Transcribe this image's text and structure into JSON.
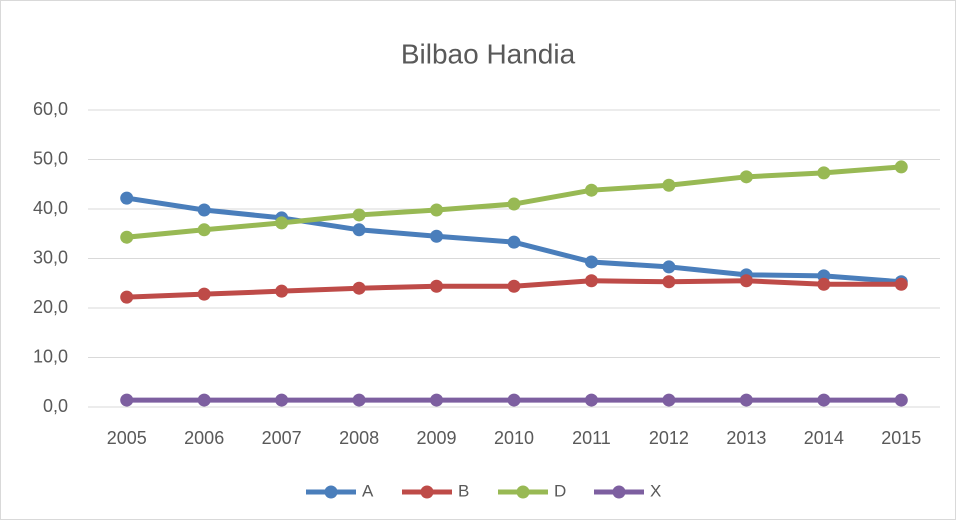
{
  "chart_data": {
    "type": "line",
    "title": "Bilbao Handia",
    "categories": [
      "2005",
      "2006",
      "2007",
      "2008",
      "2009",
      "2010",
      "2011",
      "2012",
      "2013",
      "2014",
      "2015"
    ],
    "series": [
      {
        "name": "A",
        "color": "#4a7ebb",
        "values": [
          42.2,
          39.8,
          38.2,
          35.8,
          34.5,
          33.3,
          29.3,
          28.3,
          26.7,
          26.5,
          25.3
        ]
      },
      {
        "name": "B",
        "color": "#be4b48",
        "values": [
          22.2,
          22.8,
          23.4,
          24.0,
          24.4,
          24.4,
          25.5,
          25.3,
          25.5,
          24.8,
          24.8
        ]
      },
      {
        "name": "D",
        "color": "#98b954",
        "values": [
          34.3,
          35.8,
          37.2,
          38.8,
          39.8,
          41.0,
          43.8,
          44.8,
          46.5,
          47.3,
          48.5
        ]
      },
      {
        "name": "X",
        "color": "#7d5fa0",
        "values": [
          1.4,
          1.4,
          1.4,
          1.4,
          1.4,
          1.4,
          1.4,
          1.4,
          1.4,
          1.4,
          1.4
        ]
      }
    ],
    "ylim": [
      0,
      60
    ],
    "yticks": [
      {
        "value": 0,
        "label": "0,0"
      },
      {
        "value": 10,
        "label": "10,0"
      },
      {
        "value": 20,
        "label": "20,0"
      },
      {
        "value": 30,
        "label": "30,0"
      },
      {
        "value": 40,
        "label": "40,0"
      },
      {
        "value": 50,
        "label": "50,0"
      },
      {
        "value": 60,
        "label": "60,0"
      }
    ],
    "grid": true,
    "legend": "bottom"
  }
}
